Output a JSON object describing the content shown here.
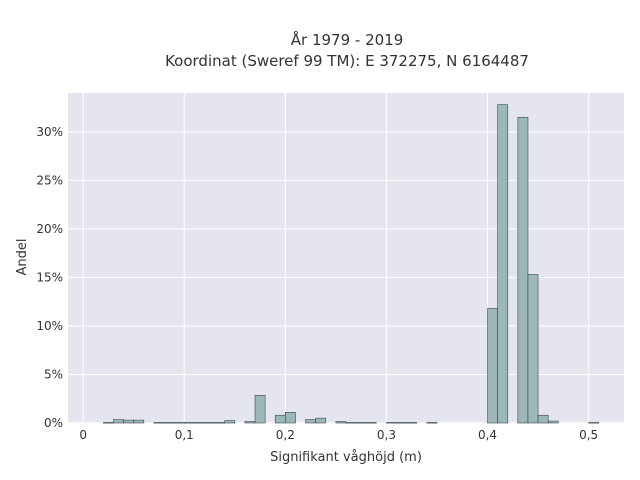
{
  "chart_data": {
    "type": "bar",
    "title_line1": "År 1979 - 2019",
    "title_line2": "Koordinat (Sweref 99 TM): E 372275, N 6164487",
    "xlabel": "Signifikant våghöjd (m)",
    "ylabel": "Andel",
    "xlim": [
      -0.015,
      0.535
    ],
    "ylim": [
      0,
      34
    ],
    "xticks": [
      {
        "value": 0,
        "label": "0"
      },
      {
        "value": 0.1,
        "label": "0,1"
      },
      {
        "value": 0.2,
        "label": "0,2"
      },
      {
        "value": 0.3,
        "label": "0,3"
      },
      {
        "value": 0.4,
        "label": "0,4"
      },
      {
        "value": 0.5,
        "label": "0,5"
      }
    ],
    "yticks": [
      {
        "value": 0,
        "label": "0%"
      },
      {
        "value": 5,
        "label": "5%"
      },
      {
        "value": 10,
        "label": "10%"
      },
      {
        "value": 15,
        "label": "15%"
      },
      {
        "value": 20,
        "label": "20%"
      },
      {
        "value": 25,
        "label": "25%"
      },
      {
        "value": 30,
        "label": "30%"
      }
    ],
    "grid": true,
    "bin_width": 0.01,
    "bins": [
      {
        "x0": 0.02,
        "value": 0.05
      },
      {
        "x0": 0.03,
        "value": 0.35
      },
      {
        "x0": 0.04,
        "value": 0.3
      },
      {
        "x0": 0.05,
        "value": 0.3
      },
      {
        "x0": 0.07,
        "value": 0.05
      },
      {
        "x0": 0.08,
        "value": 0.05
      },
      {
        "x0": 0.09,
        "value": 0.05
      },
      {
        "x0": 0.1,
        "value": 0.05
      },
      {
        "x0": 0.11,
        "value": 0.05
      },
      {
        "x0": 0.12,
        "value": 0.05
      },
      {
        "x0": 0.13,
        "value": 0.05
      },
      {
        "x0": 0.14,
        "value": 0.25
      },
      {
        "x0": 0.16,
        "value": 0.15
      },
      {
        "x0": 0.17,
        "value": 2.85
      },
      {
        "x0": 0.19,
        "value": 0.8
      },
      {
        "x0": 0.2,
        "value": 1.1
      },
      {
        "x0": 0.22,
        "value": 0.35
      },
      {
        "x0": 0.23,
        "value": 0.5
      },
      {
        "x0": 0.25,
        "value": 0.15
      },
      {
        "x0": 0.26,
        "value": 0.05
      },
      {
        "x0": 0.27,
        "value": 0.05
      },
      {
        "x0": 0.28,
        "value": 0.05
      },
      {
        "x0": 0.3,
        "value": 0.05
      },
      {
        "x0": 0.31,
        "value": 0.05
      },
      {
        "x0": 0.32,
        "value": 0.05
      },
      {
        "x0": 0.34,
        "value": 0.05
      },
      {
        "x0": 0.4,
        "value": 11.8
      },
      {
        "x0": 0.41,
        "value": 32.8
      },
      {
        "x0": 0.43,
        "value": 31.5
      },
      {
        "x0": 0.44,
        "value": 15.3
      },
      {
        "x0": 0.45,
        "value": 0.8
      },
      {
        "x0": 0.46,
        "value": 0.2
      },
      {
        "x0": 0.5,
        "value": 0.05
      }
    ],
    "colors": {
      "plot_background": "#e5e5ef",
      "bar_fill": "#9cb7b7",
      "bar_stroke": "#3a4a4a",
      "grid": "#ffffff"
    }
  }
}
